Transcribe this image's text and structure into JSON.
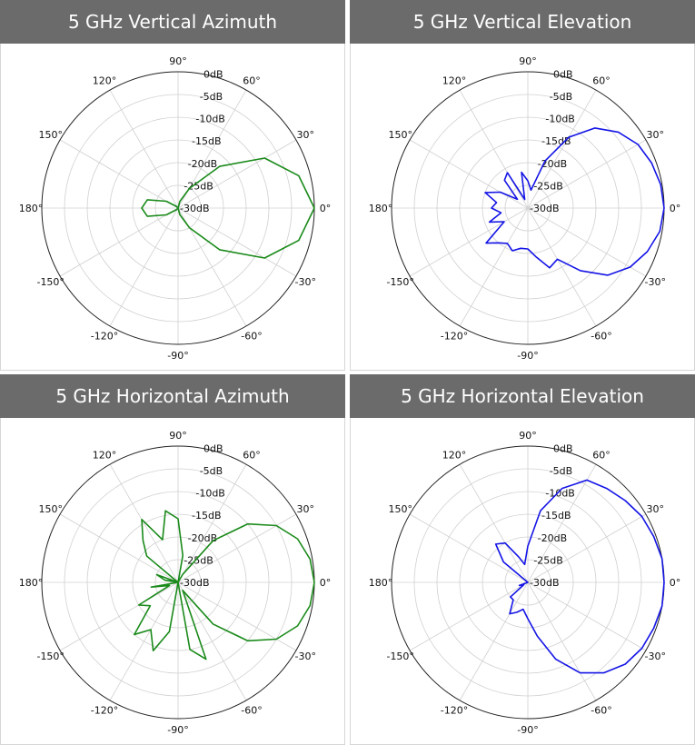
{
  "colors": {
    "header_bg": "#6b6b6b",
    "header_text": "#ffffff",
    "green": "#1a8a1a",
    "blue": "#1414e6"
  },
  "chart_data": [
    {
      "type": "polar",
      "title": "5 GHz Vertical Azimuth",
      "series_color": "#1a8a1a",
      "rlim": [
        -30,
        0
      ],
      "r_tick_labels": [
        "0dB",
        "-5dB",
        "-10dB",
        "-15dB",
        "-20dB",
        "-25dB",
        "-30dB"
      ],
      "angle_tick_labels": [
        "0°",
        "30°",
        "60°",
        "90°",
        "120°",
        "150°",
        "180°",
        "-150°",
        "-120°",
        "-90°",
        "-60°",
        "-30°"
      ],
      "grid": true,
      "theta_deg": [
        -180,
        -165,
        -150,
        -135,
        -120,
        -105,
        -90,
        -75,
        -60,
        -45,
        -30,
        -15,
        0,
        15,
        30,
        45,
        60,
        75,
        90,
        105,
        120,
        135,
        150,
        165,
        180
      ],
      "gain_db": [
        -22,
        -23,
        -27,
        -29.5,
        -30,
        -30,
        -30,
        -28.5,
        -25,
        -17,
        -8,
        -2.5,
        0,
        -2.5,
        -8,
        -17,
        -25,
        -28.5,
        -30,
        -30,
        -30,
        -29.5,
        -27,
        -23,
        -22
      ]
    },
    {
      "type": "polar",
      "title": "5 GHz Vertical Elevation",
      "series_color": "#1414e6",
      "rlim": [
        -30,
        0
      ],
      "r_tick_labels": [
        "0dB",
        "-5dB",
        "-10dB",
        "-15dB",
        "-20dB",
        "-25dB",
        "-30dB"
      ],
      "angle_tick_labels": [
        "0°",
        "30°",
        "60°",
        "90°",
        "120°",
        "150°",
        "180°",
        "-150°",
        "-120°",
        "-90°",
        "-60°",
        "-30°"
      ],
      "grid": true,
      "theta_deg": [
        -180,
        -170,
        -160,
        -150,
        -140,
        -130,
        -120,
        -110,
        -100,
        -90,
        -80,
        -70,
        -60,
        -50,
        -40,
        -30,
        -20,
        -10,
        0,
        10,
        20,
        30,
        40,
        50,
        60,
        70,
        80,
        90,
        100,
        110,
        120,
        130,
        140,
        150,
        160,
        170,
        180
      ],
      "gain_db": [
        -22,
        -24,
        -21,
        -24,
        -18,
        -20,
        -21,
        -20,
        -21,
        -21,
        -19,
        -16,
        -17,
        -12,
        -7,
        -4,
        -2,
        -0.5,
        0,
        -0.3,
        -1,
        -2,
        -4,
        -7,
        -12,
        -19,
        -26,
        -24,
        -22,
        -28,
        -21,
        -22,
        -27,
        -23,
        -20,
        -23,
        -22
      ]
    },
    {
      "type": "polar",
      "title": "5 GHz Horizontal Azimuth",
      "series_color": "#1a8a1a",
      "rlim": [
        -30,
        0
      ],
      "r_tick_labels": [
        "0dB",
        "-5dB",
        "-10dB",
        "-15dB",
        "-20dB",
        "-25dB",
        "-30dB"
      ],
      "angle_tick_labels": [
        "0°",
        "30°",
        "60°",
        "90°",
        "120°",
        "150°",
        "180°",
        "-150°",
        "-120°",
        "-90°",
        "-60°",
        "-30°"
      ],
      "grid": true,
      "theta_deg": [
        -180,
        -170,
        -160,
        -150,
        -140,
        -130,
        -120,
        -110,
        -100,
        -90,
        -80,
        -70,
        -60,
        -50,
        -40,
        -30,
        -20,
        -10,
        0,
        10,
        20,
        30,
        40,
        50,
        60,
        70,
        80,
        90,
        100,
        110,
        120,
        130,
        140,
        150,
        160,
        170,
        180
      ],
      "gain_db": [
        -30,
        -24,
        -28,
        -20,
        -22,
        -15,
        -18,
        -14,
        -19,
        -30,
        -15,
        -12,
        -28,
        -18,
        -10,
        -5,
        -2,
        -0.5,
        0,
        -0.5,
        -2,
        -5,
        -10,
        -18,
        -28,
        -30,
        -24,
        -16,
        -14,
        -20,
        -14,
        -18,
        -21,
        -30,
        -25,
        -27,
        -30
      ]
    },
    {
      "type": "polar",
      "title": "5 GHz Horizontal Elevation",
      "series_color": "#1414e6",
      "rlim": [
        -30,
        0
      ],
      "r_tick_labels": [
        "0dB",
        "-5dB",
        "-10dB",
        "-15dB",
        "-20dB",
        "-25dB",
        "-30dB"
      ],
      "angle_tick_labels": [
        "0°",
        "30°",
        "60°",
        "90°",
        "120°",
        "150°",
        "180°",
        "-150°",
        "-120°",
        "-90°",
        "-60°",
        "-30°"
      ],
      "grid": true,
      "theta_deg": [
        -180,
        -170,
        -160,
        -150,
        -140,
        -130,
        -120,
        -110,
        -100,
        -90,
        -80,
        -70,
        -60,
        -50,
        -40,
        -30,
        -20,
        -10,
        0,
        10,
        20,
        30,
        40,
        50,
        60,
        70,
        80,
        90,
        100,
        110,
        120,
        130,
        140,
        150,
        160,
        170,
        180
      ],
      "gain_db": [
        -30,
        -30,
        -28,
        -29,
        -25,
        -25,
        -22,
        -23,
        -24,
        -22,
        -18,
        -12,
        -7,
        -4,
        -2,
        -1,
        -0.5,
        0,
        0,
        0,
        -0.5,
        -1,
        -2,
        -3,
        -4,
        -8,
        -14,
        -22,
        -26,
        -24,
        -20,
        -19,
        -23,
        -30,
        -30,
        -30,
        -30
      ]
    }
  ]
}
